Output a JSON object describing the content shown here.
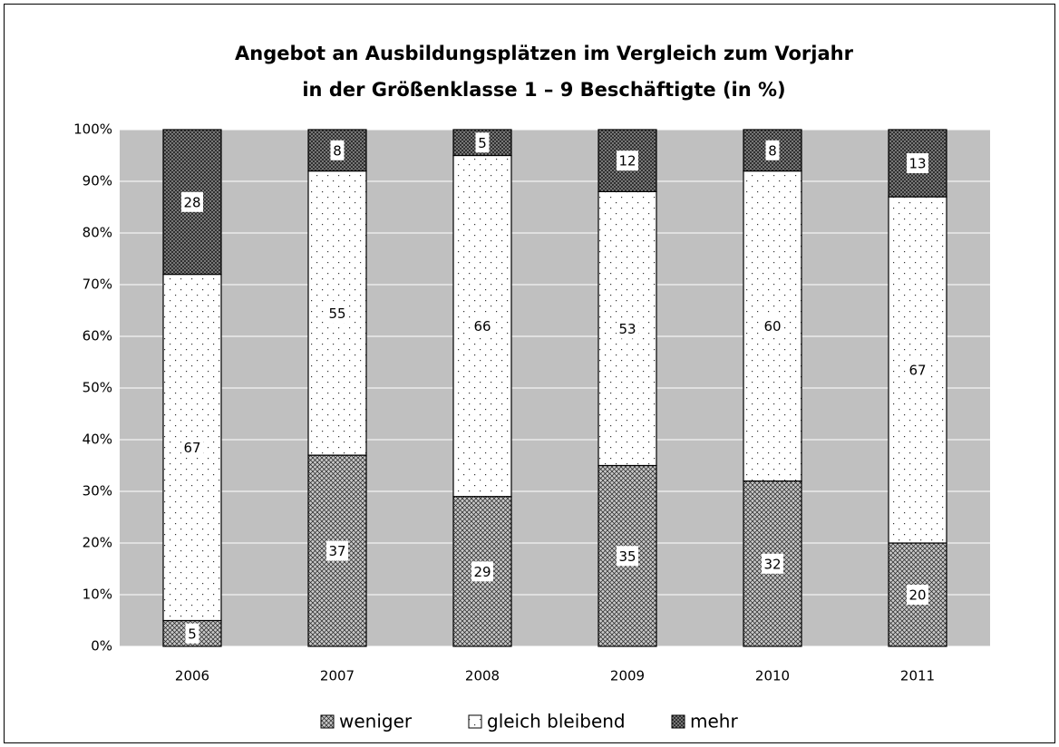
{
  "chart_data": {
    "type": "stacked_bar",
    "title": [
      "Angebot an Ausbildungsplätzen im Vergleich zum Vorjahr",
      "in der Größenklasse 1 – 9 Beschäftigte (in %)"
    ],
    "categories": [
      "2006",
      "2007",
      "2008",
      "2009",
      "2010",
      "2011"
    ],
    "series": [
      {
        "name": "weniger",
        "color": "#c8c8c8",
        "values": [
          5,
          37,
          29,
          35,
          32,
          20
        ]
      },
      {
        "name": "gleich bleibend",
        "color": "#ffffff",
        "values": [
          67,
          55,
          66,
          53,
          60,
          67
        ]
      },
      {
        "name": "mehr",
        "color": "#8c8c8c",
        "values": [
          28,
          8,
          5,
          12,
          8,
          13
        ]
      }
    ],
    "ylim": [
      0,
      100
    ],
    "yticks": [
      {
        "value": 0,
        "label": "0%"
      },
      {
        "value": 10,
        "label": "10%"
      },
      {
        "value": 20,
        "label": "20%"
      },
      {
        "value": 30,
        "label": "30%"
      },
      {
        "value": 40,
        "label": "40%"
      },
      {
        "value": 50,
        "label": "50%"
      },
      {
        "value": 60,
        "label": "60%"
      },
      {
        "value": 70,
        "label": "70%"
      },
      {
        "value": 80,
        "label": "80%"
      },
      {
        "value": 90,
        "label": "90%"
      },
      {
        "value": 100,
        "label": "100%"
      }
    ],
    "grid": true,
    "plot_background": "#c0c0c0",
    "legend": "bottom"
  }
}
